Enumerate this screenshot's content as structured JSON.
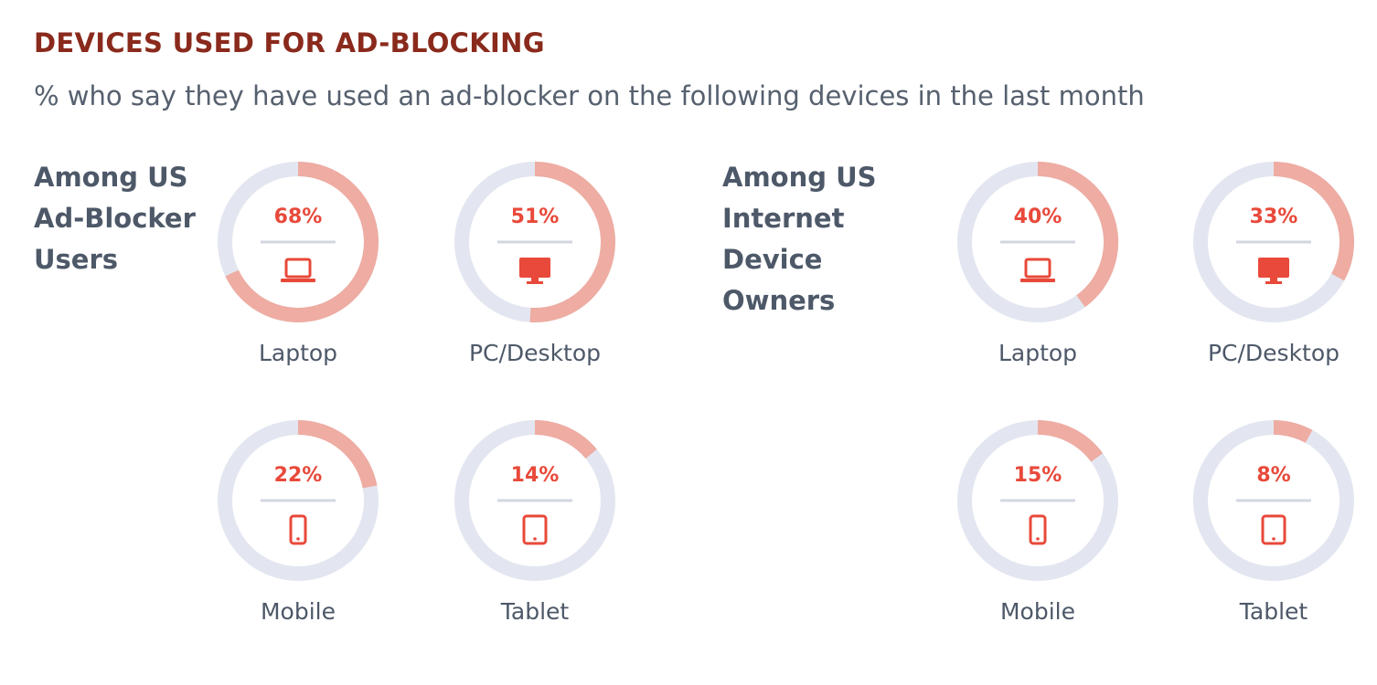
{
  "title": "DEVICES USED FOR AD-BLOCKING",
  "subtitle": "% who say they have used an ad-blocker on the following devices in the last month",
  "chart_data": [
    {
      "type": "donut",
      "title": "Among US Ad-Blocker Users",
      "categories": [
        "Laptop",
        "PC/Desktop",
        "Mobile",
        "Tablet"
      ],
      "values": [
        68,
        51,
        22,
        14
      ],
      "value_labels": [
        "68%",
        "51%",
        "22%",
        "14%"
      ],
      "color": "#eeaca2",
      "track_color": "#e3e6f0",
      "label_color": "#e8493a"
    },
    {
      "type": "donut",
      "title": "Among US Internet Device Owners",
      "categories": [
        "Laptop",
        "PC/Desktop",
        "Mobile",
        "Tablet"
      ],
      "values": [
        40,
        33,
        15,
        8
      ],
      "value_labels": [
        "40%",
        "33%",
        "15%",
        "8%"
      ],
      "color": "#eeaca2",
      "track_color": "#e3e6f0",
      "label_color": "#e8493a"
    }
  ]
}
